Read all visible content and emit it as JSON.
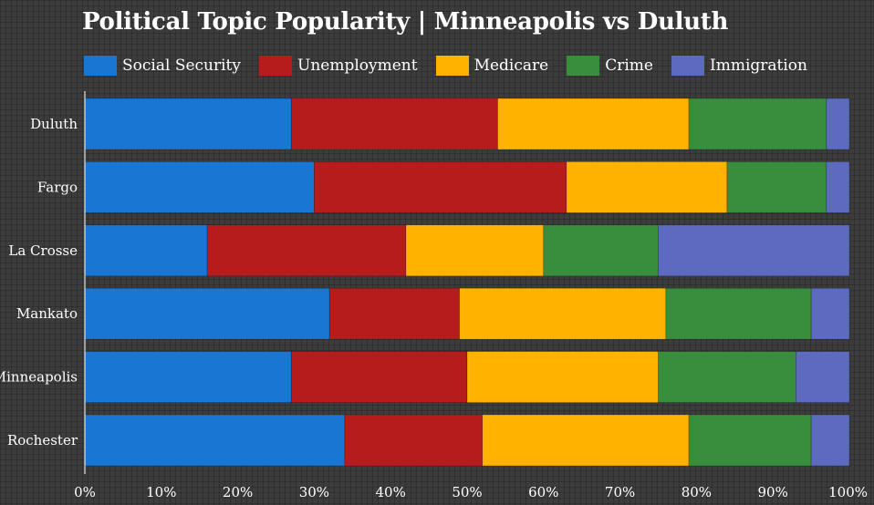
{
  "chart_data": {
    "type": "bar",
    "orientation": "horizontal",
    "stacked": "percent",
    "title": "Political Topic Popularity | Minneapolis vs Duluth",
    "categories": [
      "Duluth",
      "Fargo",
      "La Crosse",
      "Mankato",
      "Minneapolis",
      "Rochester"
    ],
    "series": [
      {
        "name": "Social Security",
        "color": "#1976d2",
        "values": [
          27,
          30,
          16,
          32,
          27,
          34
        ]
      },
      {
        "name": "Unemployment",
        "color": "#b71c1c",
        "values": [
          27,
          33,
          26,
          17,
          23,
          18
        ]
      },
      {
        "name": "Medicare",
        "color": "#ffb300",
        "values": [
          25,
          21,
          18,
          27,
          25,
          27
        ]
      },
      {
        "name": "Crime",
        "color": "#388e3c",
        "values": [
          18,
          13,
          15,
          19,
          18,
          16
        ]
      },
      {
        "name": "Immigration",
        "color": "#5c6bc0",
        "values": [
          3,
          3,
          25,
          5,
          7,
          5
        ]
      }
    ],
    "xlim": [
      0,
      100
    ],
    "x_ticks": [
      "0%",
      "10%",
      "20%",
      "30%",
      "40%",
      "50%",
      "60%",
      "70%",
      "80%",
      "90%",
      "100%"
    ],
    "legend_position": "top",
    "grid": true
  }
}
